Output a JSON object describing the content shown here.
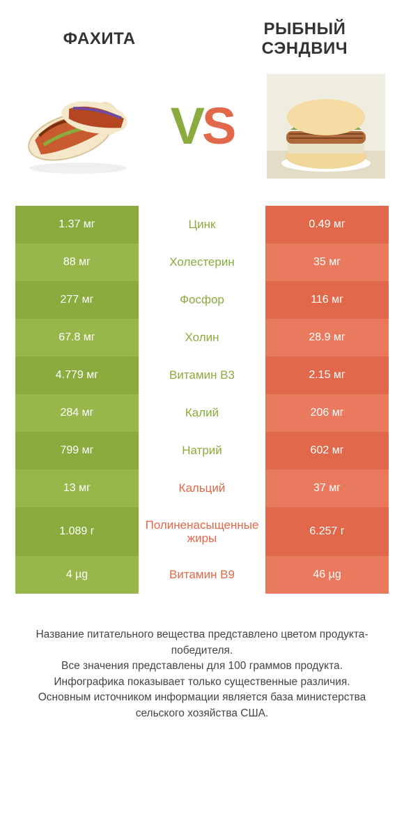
{
  "colors": {
    "green": "#8aab3d",
    "green_alt": "#97b74b",
    "orange": "#e1684a",
    "orange_alt": "#e97a5e",
    "white": "#ffffff",
    "text": "#333333"
  },
  "titles": {
    "left": "ФАХИТА",
    "right": "РЫБНЫЙ СЭНДВИЧ",
    "vs_v": "V",
    "vs_s": "S"
  },
  "rows": [
    {
      "left": "1.37 мг",
      "label": "Цинк",
      "right": "0.49 мг",
      "winner": "left"
    },
    {
      "left": "88 мг",
      "label": "Холестерин",
      "right": "35 мг",
      "winner": "left"
    },
    {
      "left": "277 мг",
      "label": "Фосфор",
      "right": "116 мг",
      "winner": "left"
    },
    {
      "left": "67.8 мг",
      "label": "Холин",
      "right": "28.9 мг",
      "winner": "left"
    },
    {
      "left": "4.779 мг",
      "label": "Витамин B3",
      "right": "2.15 мг",
      "winner": "left"
    },
    {
      "left": "284 мг",
      "label": "Калий",
      "right": "206 мг",
      "winner": "left"
    },
    {
      "left": "799 мг",
      "label": "Натрий",
      "right": "602 мг",
      "winner": "left"
    },
    {
      "left": "13 мг",
      "label": "Кальций",
      "right": "37 мг",
      "winner": "right"
    },
    {
      "left": "1.089 г",
      "label": "Полиненасыщенные жиры",
      "right": "6.257 г",
      "winner": "right",
      "tall": true
    },
    {
      "left": "4 µg",
      "label": "Витамин B9",
      "right": "46 µg",
      "winner": "right"
    }
  ],
  "footer": {
    "line1": "Название питательного вещества представлено цветом продукта-победителя.",
    "line2": "Все значения представлены для 100 граммов продукта.",
    "line3": "Инфографика показывает только существенные различия.",
    "line4": "Основным источником информации является база министерства сельского хозяйства США."
  }
}
